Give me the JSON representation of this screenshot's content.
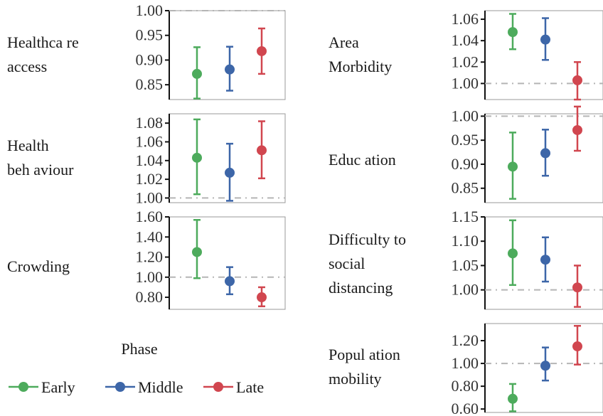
{
  "colors": {
    "Early": "#4dab5c",
    "Middle": "#3d66a8",
    "Late": "#d1464f",
    "reference_line": "#b5b5b5",
    "frame": "#9a9a9a"
  },
  "legend": {
    "title": "Phase",
    "entries": [
      {
        "label": "Early",
        "color": "#4dab5c"
      },
      {
        "label": "Middle",
        "color": "#3d66a8"
      },
      {
        "label": "Late",
        "color": "#d1464f"
      }
    ]
  },
  "chart_data": [
    {
      "type": "scatter",
      "title": "",
      "facet_label": [
        "Healthca re",
        "access"
      ],
      "ylim": [
        0.82,
        1.0
      ],
      "reference_line": 1.0,
      "yticks": [
        "0.85",
        "0.90",
        "0.95",
        "1.00"
      ],
      "points": [
        {
          "phase": "Early",
          "estimate": 0.872,
          "lower": 0.822,
          "upper": 0.926
        },
        {
          "phase": "Middle",
          "estimate": 0.881,
          "lower": 0.838,
          "upper": 0.927
        },
        {
          "phase": "Late",
          "estimate": 0.918,
          "lower": 0.872,
          "upper": 0.964
        }
      ]
    },
    {
      "type": "scatter",
      "title": "",
      "facet_label": [
        "Health",
        "beh aviour"
      ],
      "ylim": [
        0.995,
        1.09
      ],
      "reference_line": 1.0,
      "yticks": [
        "1.00",
        "1.02",
        "1.04",
        "1.06",
        "1.08"
      ],
      "points": [
        {
          "phase": "Early",
          "estimate": 1.043,
          "lower": 1.004,
          "upper": 1.084
        },
        {
          "phase": "Middle",
          "estimate": 1.027,
          "lower": 0.997,
          "upper": 1.058
        },
        {
          "phase": "Late",
          "estimate": 1.051,
          "lower": 1.021,
          "upper": 1.082
        }
      ]
    },
    {
      "type": "scatter",
      "title": "",
      "facet_label": [
        "Crowding"
      ],
      "ylim": [
        0.68,
        1.6
      ],
      "reference_line": 1.0,
      "yticks": [
        "0.80",
        "1.00",
        "1.20",
        "1.40",
        "1.60"
      ],
      "points": [
        {
          "phase": "Early",
          "estimate": 1.25,
          "lower": 0.99,
          "upper": 1.57
        },
        {
          "phase": "Middle",
          "estimate": 0.96,
          "lower": 0.83,
          "upper": 1.1
        },
        {
          "phase": "Late",
          "estimate": 0.8,
          "lower": 0.71,
          "upper": 0.9
        }
      ]
    },
    {
      "type": "scatter",
      "title": "",
      "facet_label": [
        "Area",
        "Morbidity"
      ],
      "ylim": [
        0.985,
        1.068
      ],
      "reference_line": 1.0,
      "yticks": [
        "1.00",
        "1.02",
        "1.04",
        "1.06"
      ],
      "points": [
        {
          "phase": "Early",
          "estimate": 1.048,
          "lower": 1.032,
          "upper": 1.065
        },
        {
          "phase": "Middle",
          "estimate": 1.041,
          "lower": 1.022,
          "upper": 1.061
        },
        {
          "phase": "Late",
          "estimate": 1.003,
          "lower": 0.985,
          "upper": 1.02
        }
      ]
    },
    {
      "type": "scatter",
      "title": "",
      "facet_label": [
        "Educ ation"
      ],
      "ylim": [
        0.82,
        1.005
      ],
      "reference_line": 1.0,
      "yticks": [
        "0.85",
        "0.90",
        "0.95",
        "1.00"
      ],
      "points": [
        {
          "phase": "Early",
          "estimate": 0.895,
          "lower": 0.828,
          "upper": 0.966
        },
        {
          "phase": "Middle",
          "estimate": 0.923,
          "lower": 0.876,
          "upper": 0.972
        },
        {
          "phase": "Late",
          "estimate": 0.971,
          "lower": 0.928,
          "upper": 1.02
        }
      ]
    },
    {
      "type": "scatter",
      "title": "",
      "facet_label": [
        "Difficulty to",
        "social",
        "distancing"
      ],
      "ylim": [
        0.96,
        1.15
      ],
      "reference_line": 1.0,
      "yticks": [
        "1.00",
        "1.05",
        "1.10",
        "1.15"
      ],
      "points": [
        {
          "phase": "Early",
          "estimate": 1.075,
          "lower": 1.01,
          "upper": 1.143
        },
        {
          "phase": "Middle",
          "estimate": 1.062,
          "lower": 1.017,
          "upper": 1.108
        },
        {
          "phase": "Late",
          "estimate": 1.005,
          "lower": 0.965,
          "upper": 1.05
        }
      ]
    },
    {
      "type": "scatter",
      "title": "",
      "facet_label": [
        "Popul ation",
        "mobility"
      ],
      "ylim": [
        0.57,
        1.35
      ],
      "reference_line": 1.0,
      "yticks": [
        "0.60",
        "0.80",
        "1.00",
        "1.20"
      ],
      "points": [
        {
          "phase": "Early",
          "estimate": 0.69,
          "lower": 0.58,
          "upper": 0.82
        },
        {
          "phase": "Middle",
          "estimate": 0.98,
          "lower": 0.85,
          "upper": 1.14
        },
        {
          "phase": "Late",
          "estimate": 1.15,
          "lower": 0.99,
          "upper": 1.33
        }
      ]
    }
  ]
}
